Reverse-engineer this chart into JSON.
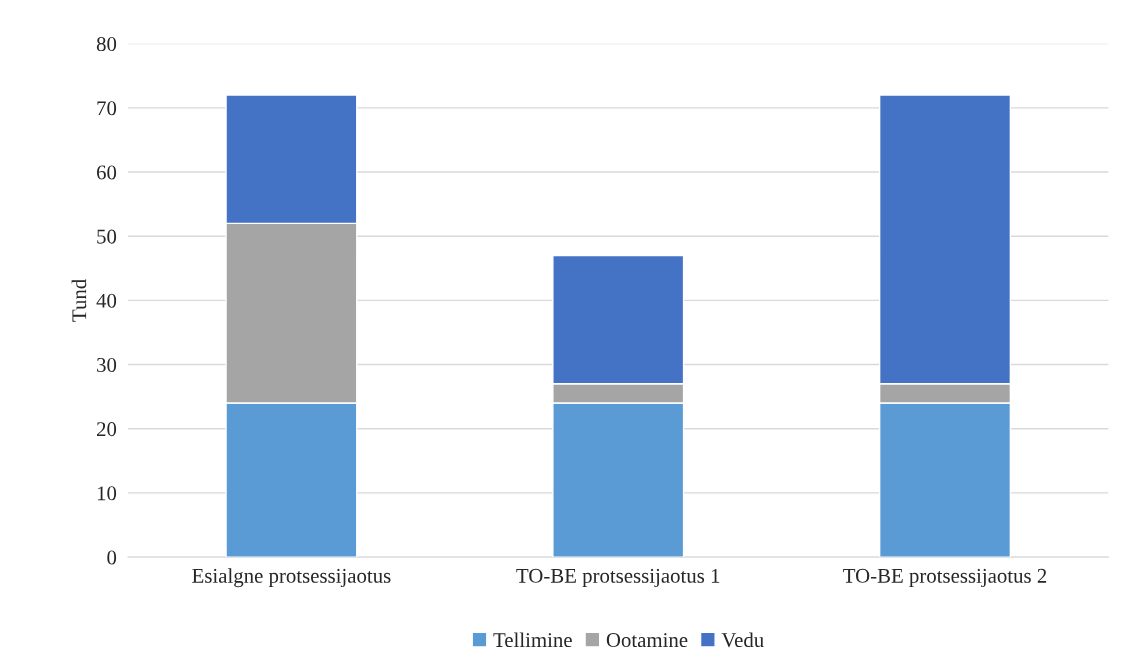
{
  "chart_data": {
    "type": "bar",
    "stacked": true,
    "ylabel": "Tund",
    "categories": [
      "Esialgne protsessijaotus",
      "TO-BE protsessijaotus 1",
      "TO-BE protsessijaotus 2"
    ],
    "series": [
      {
        "name": "Tellimine",
        "color": "#5b9bd5",
        "values": [
          24,
          24,
          24
        ]
      },
      {
        "name": "Ootamine",
        "color": "#a5a5a5",
        "values": [
          28,
          3,
          3
        ]
      },
      {
        "name": "Vedu",
        "color": "#4472c4",
        "values": [
          20,
          20,
          45
        ]
      }
    ],
    "ylim": [
      0,
      80
    ],
    "yticks": [
      0,
      10,
      20,
      30,
      40,
      50,
      60,
      70,
      80
    ],
    "grid": "y",
    "legend": "bottom"
  }
}
